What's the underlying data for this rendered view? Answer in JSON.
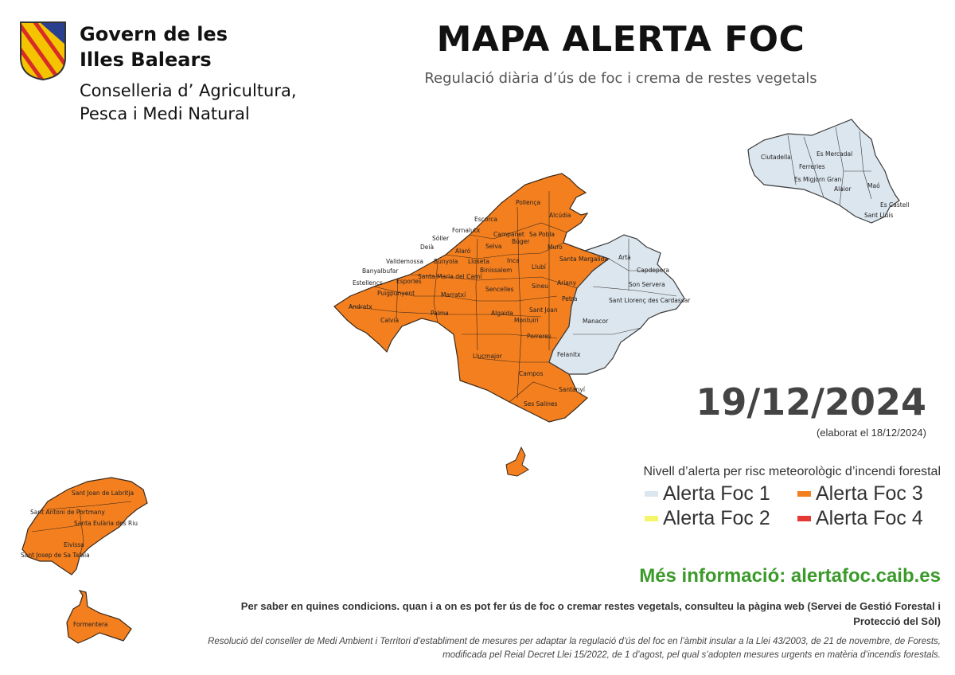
{
  "header": {
    "gov_line1": "Govern de les",
    "gov_line2": "Illes Balears",
    "conselleria_line1": "Conselleria d’ Agricultura,",
    "conselleria_line2": "Pesca i Medi Natural",
    "title": "MAPA ALERTA FOC",
    "subtitle": "Regulació diària d’ús de foc i crema de restes vegetals"
  },
  "colors": {
    "alerta_1": "#dce6ee",
    "alerta_2": "#f5f56a",
    "alerta_3": "#f47f1f",
    "alerta_4": "#e53935",
    "logo_red": "#d62d27",
    "logo_yellow": "#f5c400",
    "logo_blue": "#2b3f8f"
  },
  "date": {
    "value": "19/12/2024",
    "elaborat": "(elaborat el 18/12/2024)"
  },
  "legend": {
    "title": "Nivell d’alerta per risc meteorològic d’incendi forestal",
    "items": [
      {
        "label": "Alerta Foc 1"
      },
      {
        "label": "Alerta Foc 3"
      },
      {
        "label": "Alerta Foc 2"
      },
      {
        "label": "Alerta Foc 4"
      }
    ]
  },
  "map": {
    "mallorca_alert3": [
      "Pollença",
      "Escorca",
      "Alcúdia",
      "Fornalutx",
      "Campanet",
      "Sa Pobla",
      "Sóller",
      "Búger",
      "Deià",
      "Alaró",
      "Selva",
      "Muro",
      "Valldemossa",
      "Bunyola",
      "Lloseta",
      "Inca",
      "Llubí",
      "Santa Margalida",
      "Banyalbufar",
      "Binissalem",
      "Santa Maria del Camí",
      "Esporles",
      "Sineu",
      "Ariany",
      "Estellencs",
      "Sencelles",
      "Puigpunyent",
      "Marratxí",
      "Petra",
      "Andratx",
      "Sant Joan",
      "Calvià",
      "Palma",
      "Algaida",
      "Montuïri",
      "Porreres",
      "Llucmajor",
      "Campos",
      "Santanyí",
      "Ses Salines"
    ],
    "mallorca_alert1": [
      "Artà",
      "Capdepera",
      "Son Servera",
      "Sant Llorenç des Cardassar",
      "Manacor",
      "Felanitx"
    ],
    "menorca_alert1": [
      "Ciutadella",
      "Es Mercadal",
      "Ferreries",
      "Es Migjorn Gran",
      "Alaior",
      "Maó",
      "Es Castell",
      "Sant Lluís"
    ],
    "pitiuses_alert3": [
      "Sant Joan de Labritja",
      "Sant Antoni de Portmany",
      "Santa Eulària des Riu",
      "Eivissa",
      "Sant Josep de Sa Talaia",
      "Formentera"
    ]
  },
  "footer": {
    "mes_info": "Més informació: alertafoc.caib.es",
    "per_saber": "Per saber en quines condicions. quan i a on es pot fer ús de foc o cremar restes vegetals, consulteu la pàgina web (Servei de Gestió Forestal i Protecció del Sòl)",
    "resolucio": "Resolució del conseller de Medi Ambient i Territori d’establiment de mesures per adaptar la regulació d’ús del foc en l’àmbit insular a la Llei 43/2003, de 21 de novembre, de Forests, modificada pel Reial Decret Llei 15/2022, de 1 d’agost, pel qual s’adopten mesures urgents en matèria d’incendis forestals."
  }
}
